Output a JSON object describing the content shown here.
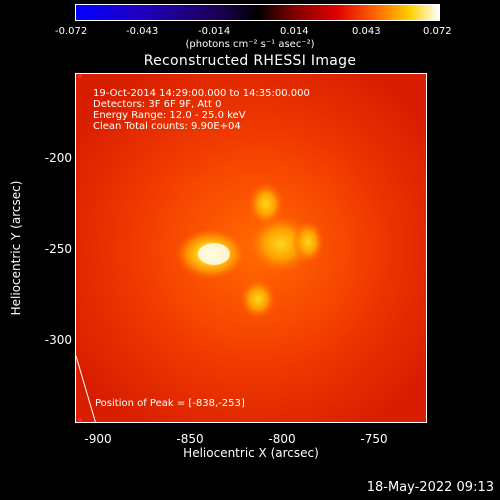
{
  "colorbar": {
    "ticks": [
      "-0.072",
      "-0.043",
      "-0.014",
      "0.014",
      "0.043",
      "0.072"
    ],
    "units": "(photons cm⁻² s⁻¹ asec⁻²)"
  },
  "title": "Reconstructed RHESSI Image",
  "info": {
    "line1": "19-Oct-2014 14:29:00.000 to 14:35:00.000",
    "line2": "Detectors: 3F 6F 9F, Att 0",
    "line3": "Energy Range: 12.0 - 25.0 keV",
    "line4": "Clean    Total counts: 9.90E+04"
  },
  "axes": {
    "xlabel": "Heliocentric X (arcsec)",
    "ylabel": "Heliocentric Y (arcsec)",
    "xticks": [
      "-900",
      "-850",
      "-800",
      "-750"
    ],
    "yticks": [
      "-200",
      "-250",
      "-300"
    ]
  },
  "peak_text": "Position of Peak = [-838,-253]",
  "timestamp": "18-May-2022 09:13"
}
